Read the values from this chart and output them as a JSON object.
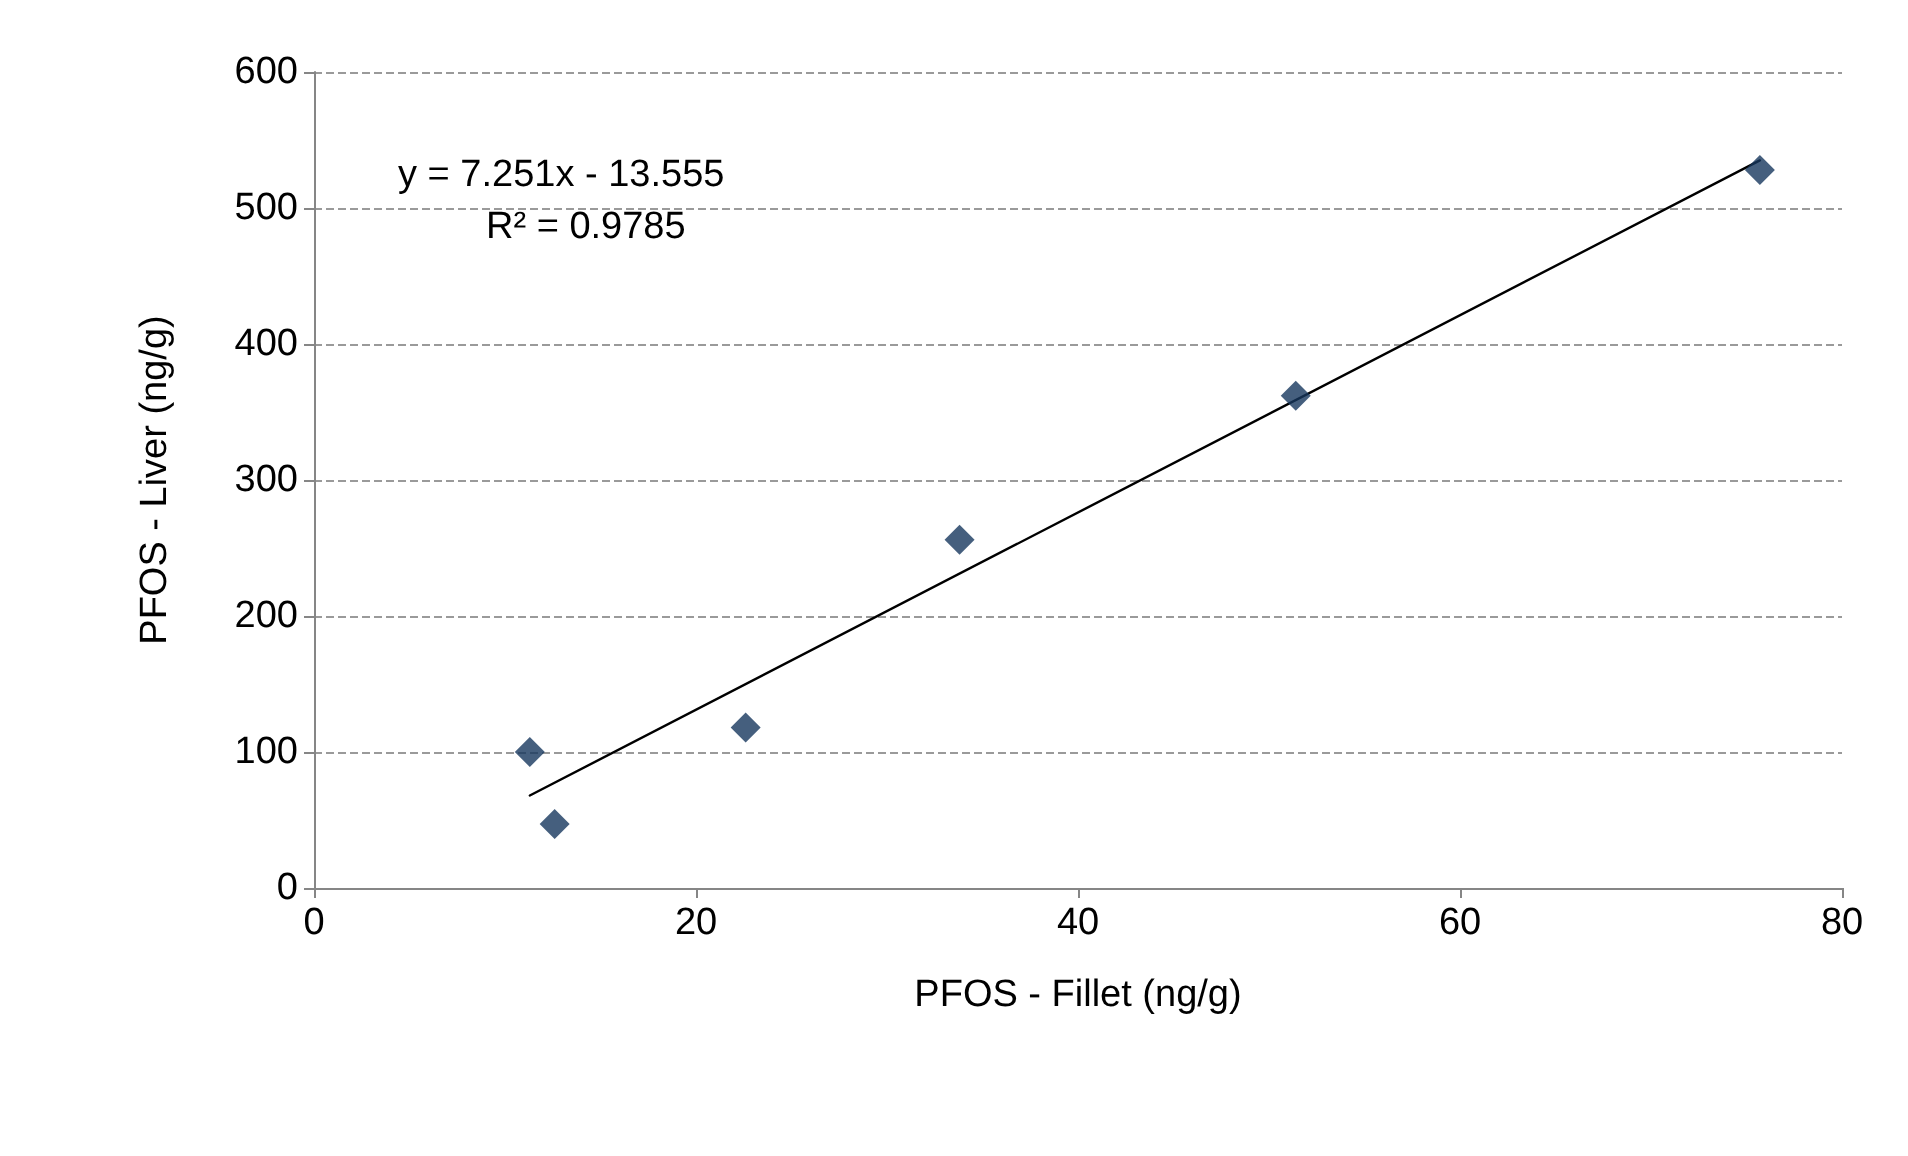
{
  "chart_data": {
    "type": "scatter",
    "xlabel": "PFOS - Fillet (ng/g)",
    "ylabel": "PFOS - Liver (ng/g)",
    "xlim": [
      0,
      80
    ],
    "xticks": [
      0,
      20,
      40,
      60,
      80
    ],
    "ylim": [
      0,
      600
    ],
    "yticks": [
      0,
      100,
      200,
      300,
      400,
      500,
      600
    ],
    "grid": "y",
    "annotations": [
      "y = 7.251x - 13.555",
      "R² = 0.9785"
    ],
    "series": [
      {
        "type": "scatter",
        "marker": "diamond",
        "color": "#17375e",
        "x": [
          11.3,
          12.6,
          22.6,
          33.8,
          51.4,
          75.7
        ],
        "values": [
          100,
          47,
          118,
          256,
          362,
          528
        ]
      },
      {
        "type": "line",
        "marker": "none",
        "line_style": "solid",
        "color": "#000000",
        "x": [
          11.3,
          75.7
        ],
        "values": [
          68,
          535
        ]
      }
    ]
  }
}
